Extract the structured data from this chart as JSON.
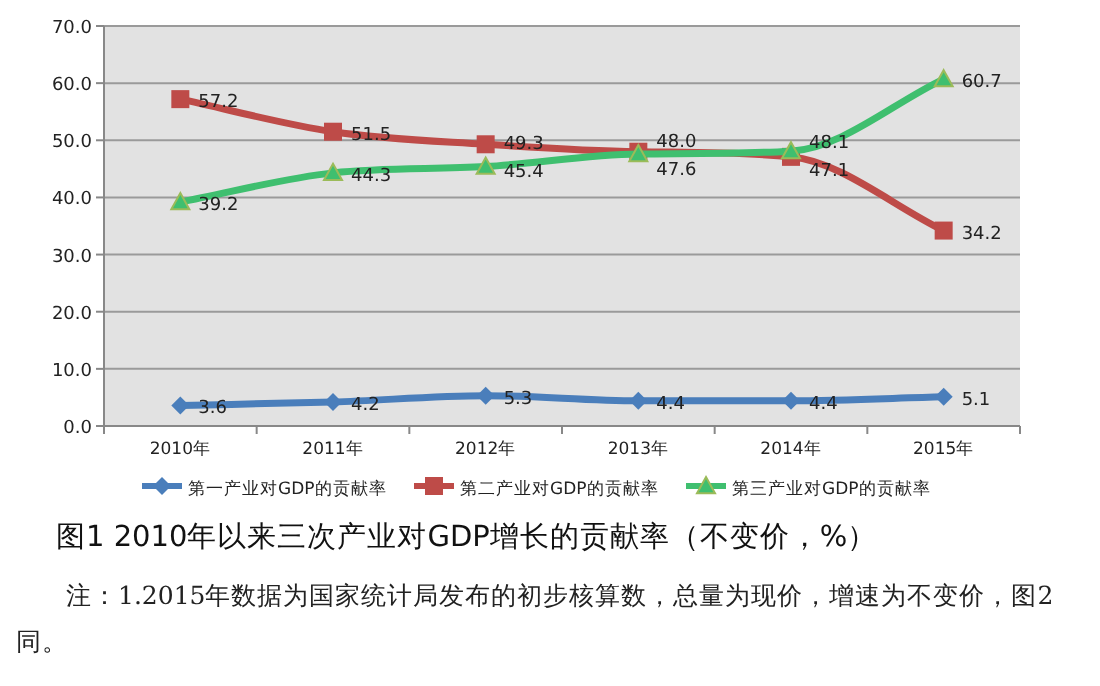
{
  "chart_data": {
    "type": "line",
    "title": "图1  2010年以来三次产业对GDP增长的贡献率（不变价，%）",
    "annotations": [
      "注：1.2015年数据为国家统计局发布的初步核算数，总量为现价，增速为不变价，图2同。"
    ],
    "categories": [
      "2010年",
      "2011年",
      "2012年",
      "2013年",
      "2014年",
      "2015年"
    ],
    "series": [
      {
        "name": "第一产业对GDP的贡献率",
        "color": "#4a7ebb",
        "marker": "diamond",
        "values": [
          3.6,
          4.2,
          5.3,
          4.4,
          4.4,
          5.1
        ],
        "value_labels": [
          "3.6",
          "4.2",
          "5.3",
          "4.4",
          "4.4",
          "5.1"
        ]
      },
      {
        "name": "第二产业对GDP的贡献率",
        "color": "#be4b48",
        "marker": "square",
        "values": [
          57.2,
          51.5,
          49.3,
          48.0,
          47.1,
          34.2
        ],
        "value_labels": [
          "57.2",
          "51.5",
          "49.3",
          "48.0",
          "47.1",
          "34.2"
        ]
      },
      {
        "name": "第三产业对GDP的贡献率",
        "color": "#3fbf6f",
        "marker": "triangle",
        "values": [
          39.2,
          44.3,
          45.4,
          47.6,
          48.1,
          60.7
        ],
        "value_labels": [
          "39.2",
          "44.3",
          "45.4",
          "47.6",
          "48.1",
          "60.7"
        ]
      }
    ],
    "ylim": [
      0,
      70
    ],
    "yticks": [
      {
        "value": 0,
        "label": "0.0"
      },
      {
        "value": 10,
        "label": "10.0"
      },
      {
        "value": 20,
        "label": "20.0"
      },
      {
        "value": 30,
        "label": "30.0"
      },
      {
        "value": 40,
        "label": "40.0"
      },
      {
        "value": 50,
        "label": "50.0"
      },
      {
        "value": 60,
        "label": "60.0"
      },
      {
        "value": 70,
        "label": "70.0"
      }
    ],
    "grid": "y",
    "legend": "bottom",
    "line_style": "solid"
  }
}
